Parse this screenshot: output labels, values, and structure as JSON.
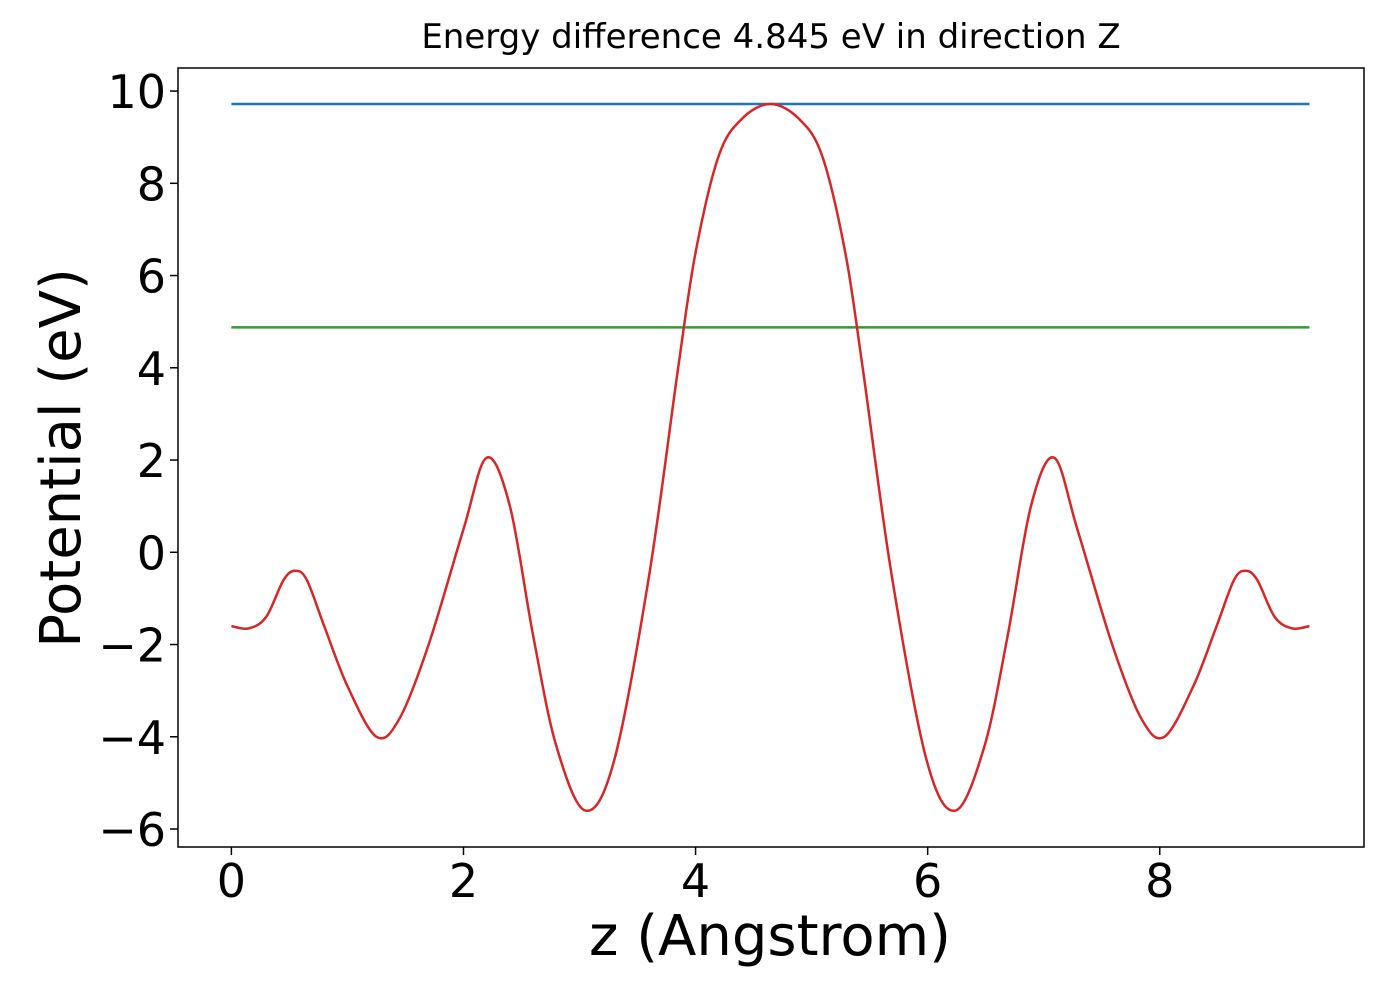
{
  "chart_data": {
    "type": "line",
    "title": "Energy difference 4.845 eV in direction Z",
    "xlabel": "z (Angstrom)",
    "ylabel": "Potential (eV)",
    "xlim": [
      -0.46,
      9.76
    ],
    "ylim": [
      -6.39,
      10.5
    ],
    "xticks": [
      0,
      2,
      4,
      6,
      8
    ],
    "yticks": [
      {
        "value": -6,
        "label": "−6"
      },
      {
        "value": -4,
        "label": "−4"
      },
      {
        "value": -2,
        "label": "−2"
      },
      0,
      2,
      4,
      6,
      8,
      10
    ],
    "grid": false,
    "series": [
      {
        "color": "#1f77b4",
        "x": [
          0,
          9.29
        ],
        "values": [
          9.72,
          9.72
        ]
      },
      {
        "color": "#2ca02c",
        "x": [
          0,
          9.29
        ],
        "values": [
          4.875,
          4.875
        ]
      },
      {
        "color": "#d62728",
        "x": [
          0,
          0.15,
          0.3,
          0.45,
          0.55,
          0.65,
          0.8,
          1.0,
          1.25,
          1.45,
          1.7,
          2.0,
          2.2,
          2.4,
          2.6,
          2.8,
          3.05,
          3.3,
          3.6,
          3.85,
          4.0,
          4.2,
          4.4,
          4.645,
          4.89,
          5.09,
          5.29,
          5.44,
          5.69,
          5.99,
          6.24,
          6.49,
          6.69,
          6.89,
          7.09,
          7.29,
          7.59,
          7.84,
          8.04,
          8.29,
          8.49,
          8.64,
          8.74,
          8.84,
          8.99,
          9.14,
          9.29
        ],
        "values": [
          -1.6,
          -1.65,
          -1.4,
          -0.6,
          -0.4,
          -0.6,
          -1.6,
          -2.9,
          -4.0,
          -3.6,
          -2.0,
          0.5,
          2.05,
          1.0,
          -1.8,
          -4.2,
          -5.6,
          -4.5,
          -0.5,
          4.0,
          6.5,
          8.6,
          9.4,
          9.72,
          9.4,
          8.6,
          6.5,
          4.0,
          -0.5,
          -4.5,
          -5.6,
          -4.2,
          -1.8,
          1.0,
          2.05,
          0.5,
          -2.0,
          -3.6,
          -4.0,
          -2.9,
          -1.6,
          -0.6,
          -0.4,
          -0.6,
          -1.4,
          -1.65,
          -1.6
        ]
      }
    ]
  }
}
